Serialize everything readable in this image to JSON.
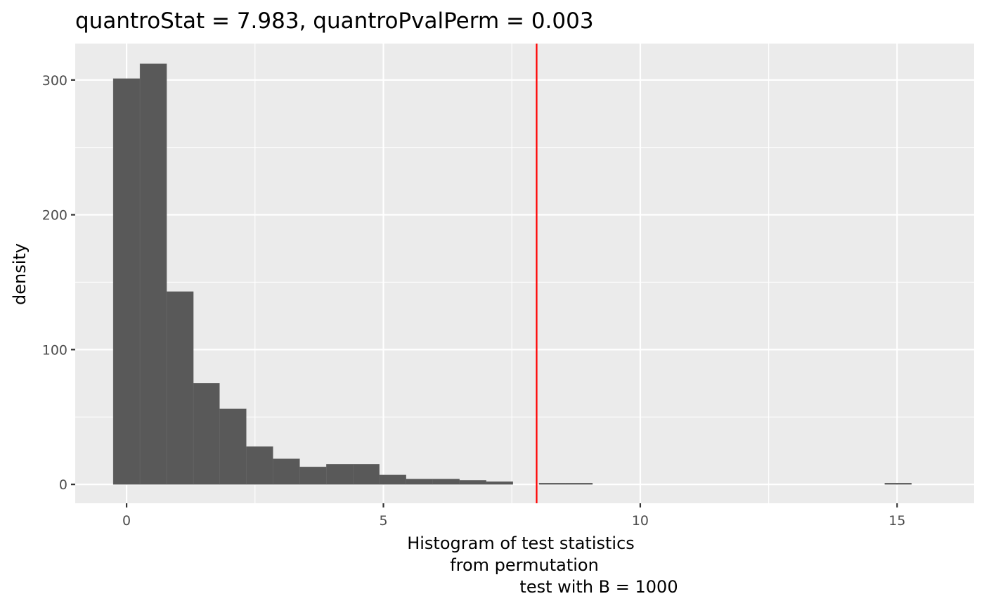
{
  "chart_data": {
    "type": "bar",
    "title": "quantroStat = 7.983, quantroPvalPerm = 0.003",
    "xlabel_lines": [
      "Histogram of test statistics",
      "from permutation",
      "test with B = 1000"
    ],
    "ylabel": "density",
    "xlim": [
      -1.0,
      16.5
    ],
    "ylim": [
      -14,
      327
    ],
    "x_ticks": [
      0,
      5,
      10,
      15
    ],
    "y_ticks": [
      0,
      100,
      200,
      300
    ],
    "bin_width": 0.518,
    "bins": [
      {
        "xmin": -0.26,
        "xmax": 0.26,
        "count": 301
      },
      {
        "xmin": 0.26,
        "xmax": 0.78,
        "count": 312
      },
      {
        "xmin": 0.78,
        "xmax": 1.3,
        "count": 143
      },
      {
        "xmin": 1.3,
        "xmax": 1.81,
        "count": 75
      },
      {
        "xmin": 1.81,
        "xmax": 2.33,
        "count": 56
      },
      {
        "xmin": 2.33,
        "xmax": 2.85,
        "count": 28
      },
      {
        "xmin": 2.85,
        "xmax": 3.37,
        "count": 19
      },
      {
        "xmin": 3.37,
        "xmax": 3.89,
        "count": 13
      },
      {
        "xmin": 3.89,
        "xmax": 4.41,
        "count": 15
      },
      {
        "xmin": 4.41,
        "xmax": 4.92,
        "count": 15
      },
      {
        "xmin": 4.92,
        "xmax": 5.44,
        "count": 7
      },
      {
        "xmin": 5.44,
        "xmax": 5.96,
        "count": 4
      },
      {
        "xmin": 5.96,
        "xmax": 6.48,
        "count": 4
      },
      {
        "xmin": 6.48,
        "xmax": 7.0,
        "count": 3
      },
      {
        "xmin": 7.0,
        "xmax": 7.52,
        "count": 2
      },
      {
        "xmin": 8.03,
        "xmax": 8.55,
        "count": 1
      },
      {
        "xmin": 8.55,
        "xmax": 9.07,
        "count": 1
      },
      {
        "xmin": 14.76,
        "xmax": 15.28,
        "count": 1
      }
    ],
    "vline": {
      "x": 7.983,
      "color": "#ff0000"
    },
    "colors": {
      "bar_fill": "#595959",
      "panel": "#ebebeb",
      "grid": "#ffffff"
    },
    "grid": true,
    "legend": "none"
  }
}
